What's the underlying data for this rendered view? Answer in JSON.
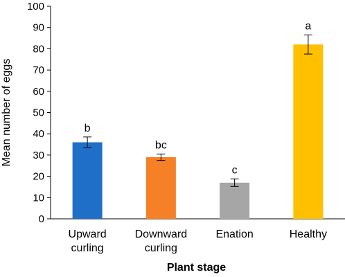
{
  "chart_data": {
    "type": "bar",
    "categories": [
      [
        "Upward",
        "curling"
      ],
      [
        "Downward",
        "curling"
      ],
      [
        "Enation"
      ],
      [
        "Healthy"
      ]
    ],
    "values": [
      36,
      29,
      17,
      82
    ],
    "errors": [
      2.5,
      1.5,
      1.8,
      4.5
    ],
    "significance_labels": [
      "b",
      "bc",
      "c",
      "a"
    ],
    "colors": [
      "#1f6fc8",
      "#f58025",
      "#a6a6a6",
      "#ffc000"
    ],
    "xlabel": "Plant stage",
    "ylabel": "Mean number of eggs",
    "ylim": [
      0,
      100
    ],
    "yticks": [
      0,
      10,
      20,
      30,
      40,
      50,
      60,
      70,
      80,
      90,
      100
    ],
    "grid": false
  }
}
